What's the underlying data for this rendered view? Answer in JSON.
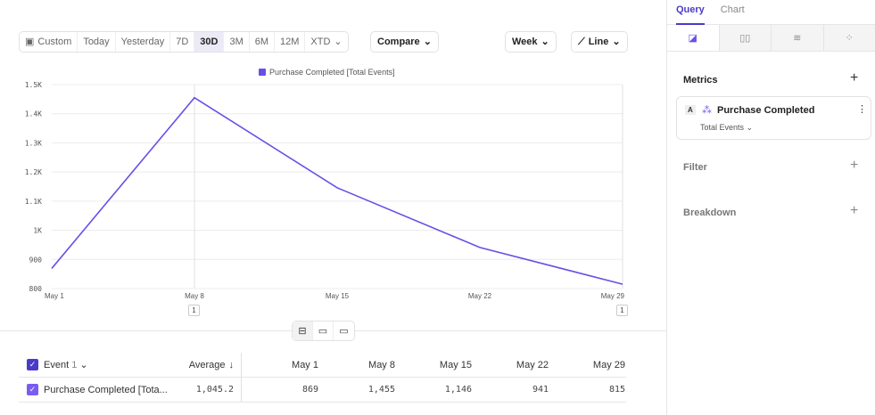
{
  "toolbar": {
    "date_ranges": [
      "Custom",
      "Today",
      "Yesterday",
      "7D",
      "30D",
      "3M",
      "6M",
      "12M",
      "XTD"
    ],
    "active_range": "30D",
    "compare": "Compare",
    "interval": "Week",
    "chart_type": "Line"
  },
  "chart_data": {
    "type": "line",
    "legend": "Purchase Completed [Total Events]",
    "legend_position": "top-center",
    "categories": [
      "May 1",
      "May 8",
      "May 15",
      "May 22",
      "May 29"
    ],
    "series": [
      {
        "name": "Purchase Completed [Total Events]",
        "values": [
          869,
          1455,
          1146,
          941,
          815
        ],
        "color": "#6a4ee8"
      }
    ],
    "yticks": [
      "800",
      "900",
      "1K",
      "1.1K",
      "1.2K",
      "1.3K",
      "1.4K",
      "1.5K"
    ],
    "ylim": [
      800,
      1500
    ],
    "grid": true,
    "annotations": [
      {
        "x": "May 8",
        "label": "1"
      },
      {
        "x": "May 29",
        "label": "1"
      }
    ]
  },
  "table": {
    "event_header": "Event",
    "event_count": "1",
    "average_header": "Average",
    "columns": [
      "May 1",
      "May 8",
      "May 15",
      "May 22",
      "May 29"
    ],
    "rows": [
      {
        "name": "Purchase Completed [Tota...",
        "average": "1,045.2",
        "values": [
          "869",
          "1,455",
          "1,146",
          "941",
          "815"
        ]
      }
    ]
  },
  "sidebar": {
    "tabs": [
      "Query",
      "Chart"
    ],
    "active_tab": "Query",
    "metrics_label": "Metrics",
    "metric_letter": "A",
    "metric_name": "Purchase Completed",
    "metric_agg": "Total Events",
    "filter_label": "Filter",
    "breakdown_label": "Breakdown"
  }
}
